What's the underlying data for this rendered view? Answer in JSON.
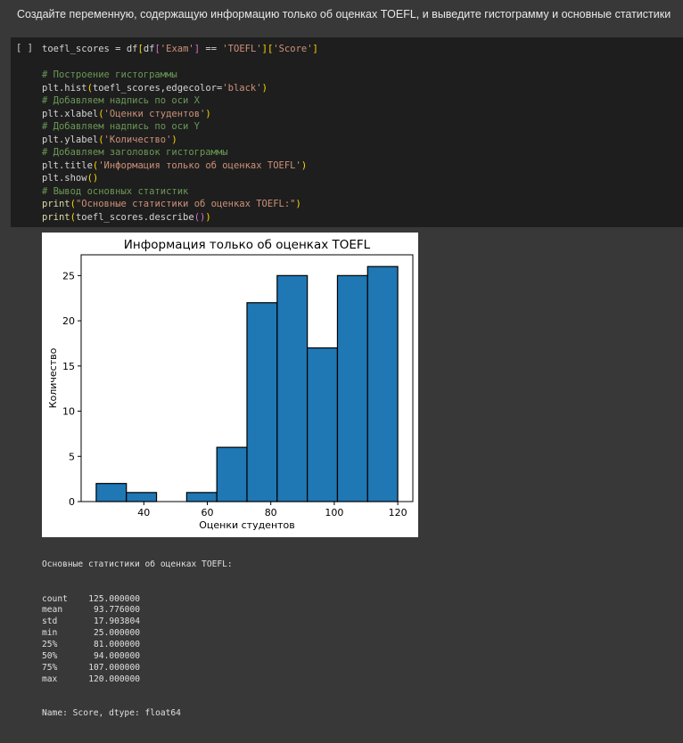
{
  "markdown_cell": {
    "text": "Создайте переменную, содержащую информацию только об оценках TOEFL, и выведите гистограмму и основные статистики"
  },
  "code_cell": {
    "run_indicator": "[ ]",
    "lines": [
      [
        {
          "t": "toefl_scores",
          "c": "plain"
        },
        {
          "t": " = ",
          "c": "plain"
        },
        {
          "t": "df",
          "c": "plain"
        },
        {
          "t": "[",
          "c": "br1"
        },
        {
          "t": "df",
          "c": "plain"
        },
        {
          "t": "[",
          "c": "br2"
        },
        {
          "t": "'Exam'",
          "c": "str"
        },
        {
          "t": "]",
          "c": "br2"
        },
        {
          "t": " == ",
          "c": "plain"
        },
        {
          "t": "'TOEFL'",
          "c": "str"
        },
        {
          "t": "]",
          "c": "br1"
        },
        {
          "t": "[",
          "c": "br1"
        },
        {
          "t": "'Score'",
          "c": "str"
        },
        {
          "t": "]",
          "c": "br1"
        }
      ],
      [],
      [
        {
          "t": "# Построение гистограммы",
          "c": "com"
        }
      ],
      [
        {
          "t": "plt.hist",
          "c": "plain"
        },
        {
          "t": "(",
          "c": "br1"
        },
        {
          "t": "toefl_scores,edgecolor=",
          "c": "plain"
        },
        {
          "t": "'black'",
          "c": "str"
        },
        {
          "t": ")",
          "c": "br1"
        }
      ],
      [
        {
          "t": "# Добавляем надпись по оси X",
          "c": "com"
        }
      ],
      [
        {
          "t": "plt.xlabel",
          "c": "plain"
        },
        {
          "t": "(",
          "c": "br1"
        },
        {
          "t": "'Оценки студентов'",
          "c": "str"
        },
        {
          "t": ")",
          "c": "br1"
        }
      ],
      [
        {
          "t": "# Добавляем надпись по оси Y",
          "c": "com"
        }
      ],
      [
        {
          "t": "plt.ylabel",
          "c": "plain"
        },
        {
          "t": "(",
          "c": "br1"
        },
        {
          "t": "'Количество'",
          "c": "str"
        },
        {
          "t": ")",
          "c": "br1"
        }
      ],
      [
        {
          "t": "# Добавляем заголовок гистограммы",
          "c": "com"
        }
      ],
      [
        {
          "t": "plt.title",
          "c": "plain"
        },
        {
          "t": "(",
          "c": "br1"
        },
        {
          "t": "'Информация только об оценках TOEFL'",
          "c": "str"
        },
        {
          "t": ")",
          "c": "br1"
        }
      ],
      [
        {
          "t": "plt.show",
          "c": "plain"
        },
        {
          "t": "()",
          "c": "br1"
        }
      ],
      [
        {
          "t": "# Вывод основных статистик",
          "c": "com"
        }
      ],
      [
        {
          "t": "print",
          "c": "fn"
        },
        {
          "t": "(",
          "c": "br1"
        },
        {
          "t": "\"Основные статистики об оценках TOEFL:\"",
          "c": "str"
        },
        {
          "t": ")",
          "c": "br1"
        }
      ],
      [
        {
          "t": "print",
          "c": "fn"
        },
        {
          "t": "(",
          "c": "br1"
        },
        {
          "t": "toefl_scores.describe",
          "c": "plain"
        },
        {
          "t": "()",
          "c": "br2"
        },
        {
          "t": ")",
          "c": "br1"
        }
      ]
    ]
  },
  "chart_data": {
    "type": "bar",
    "title": "Информация только об оценках TOEFL",
    "xlabel": "Оценки студентов",
    "ylabel": "Количество",
    "bins": [
      {
        "x0": 25.0,
        "x1": 34.5,
        "count": 2
      },
      {
        "x0": 34.5,
        "x1": 44.0,
        "count": 1
      },
      {
        "x0": 44.0,
        "x1": 53.5,
        "count": 0
      },
      {
        "x0": 53.5,
        "x1": 63.0,
        "count": 1
      },
      {
        "x0": 63.0,
        "x1": 72.5,
        "count": 6
      },
      {
        "x0": 72.5,
        "x1": 82.0,
        "count": 22
      },
      {
        "x0": 82.0,
        "x1": 91.5,
        "count": 25
      },
      {
        "x0": 91.5,
        "x1": 101.0,
        "count": 17
      },
      {
        "x0": 101.0,
        "x1": 110.5,
        "count": 25
      },
      {
        "x0": 110.5,
        "x1": 120.0,
        "count": 26
      }
    ],
    "xlim": [
      20.25,
      124.75
    ],
    "ylim": [
      0,
      27.3
    ],
    "xticks": [
      40,
      60,
      80,
      100,
      120
    ],
    "yticks": [
      0,
      5,
      10,
      15,
      20,
      25
    ],
    "bar_color": "#1f77b4",
    "edge_color": "#000000",
    "grid": false
  },
  "stats_output": {
    "header": "Основные статистики об оценках TOEFL:",
    "rows": [
      {
        "k": "count",
        "v": "125.000000"
      },
      {
        "k": "mean",
        "v": "93.776000"
      },
      {
        "k": "std",
        "v": "17.903804"
      },
      {
        "k": "min",
        "v": "25.000000"
      },
      {
        "k": "25%",
        "v": "81.000000"
      },
      {
        "k": "50%",
        "v": "94.000000"
      },
      {
        "k": "75%",
        "v": "107.000000"
      },
      {
        "k": "max",
        "v": "120.000000"
      }
    ],
    "footer": "Name: Score, dtype: float64"
  }
}
